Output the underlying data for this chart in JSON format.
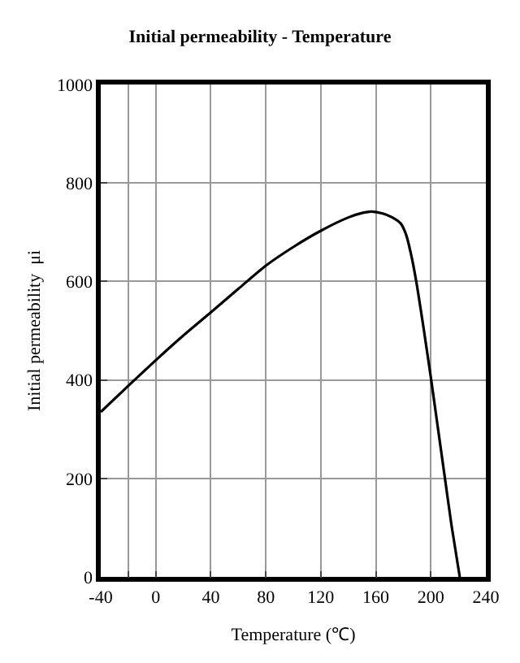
{
  "chart_data": {
    "type": "line",
    "title": "Initial permeability - Temperature",
    "xlabel": "Temperature (℃)",
    "ylabel": "Initial permeability  μi",
    "x": [
      -40,
      -20,
      0,
      20,
      40,
      60,
      80,
      100,
      120,
      140,
      150,
      157,
      165,
      172,
      178,
      182,
      186,
      190,
      195,
      200,
      205,
      210,
      215,
      221
    ],
    "series": [
      {
        "color": "#000000",
        "values": [
          335,
          388,
          440,
          490,
          537,
          585,
          632,
          670,
          703,
          730,
          739,
          742,
          738,
          730,
          718,
          695,
          650,
          590,
          500,
          405,
          305,
          205,
          105,
          0
        ]
      }
    ],
    "xlim": [
      -40,
      240
    ],
    "xticks": [
      -40,
      {
        "value": -20,
        "label": null
      },
      0,
      40,
      80,
      120,
      160,
      200,
      240
    ],
    "ylim": [
      0,
      1000
    ],
    "yticks": [
      0,
      200,
      400,
      600,
      800,
      1000
    ],
    "grid": true,
    "legend": false,
    "marker": "none",
    "line_style": "solid"
  }
}
